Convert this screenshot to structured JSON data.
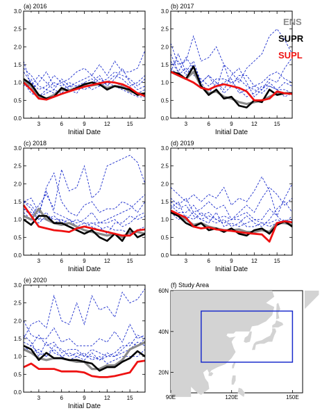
{
  "colors": {
    "ENS": "#8a8a8a",
    "SUPR": "#000000",
    "SUPL": "#ee1111",
    "member": "#1a2ccc",
    "land": "#d3d3d3",
    "box": "#1a2ccc"
  },
  "legend": [
    {
      "key": "ENS",
      "label": "ENS"
    },
    {
      "key": "SUPR",
      "label": "SUPR"
    },
    {
      "key": "SUPL",
      "label": "SUPL"
    }
  ],
  "chart_data": [
    {
      "type": "line",
      "title": "(a) 2016",
      "xlabel": "Initial Date",
      "ylabel": "",
      "x": [
        1,
        2,
        3,
        4,
        5,
        6,
        7,
        8,
        9,
        10,
        11,
        12,
        13,
        14,
        15,
        16,
        17
      ],
      "xticks": [
        3,
        6,
        9,
        12,
        15
      ],
      "yticks": [
        "0.0",
        "0.5",
        "1.0",
        "1.5",
        "2.0",
        "2.5",
        "3.0"
      ],
      "xlim": [
        1,
        17
      ],
      "ylim": [
        0,
        3
      ],
      "series": [
        {
          "name": "ENS",
          "values": [
            1.05,
            0.9,
            0.6,
            0.55,
            0.65,
            0.8,
            0.78,
            0.85,
            0.9,
            0.92,
            0.95,
            0.85,
            0.9,
            0.88,
            0.75,
            0.7,
            0.68
          ]
        },
        {
          "name": "SUPR",
          "values": [
            1.1,
            0.95,
            0.65,
            0.55,
            0.6,
            0.85,
            0.75,
            0.85,
            0.95,
            1.0,
            0.95,
            0.8,
            0.9,
            0.85,
            0.8,
            0.65,
            0.7
          ]
        },
        {
          "name": "SUPL",
          "values": [
            1.0,
            0.8,
            0.55,
            0.52,
            0.6,
            0.68,
            0.75,
            0.82,
            0.88,
            0.93,
            0.98,
            1.02,
            1.0,
            0.95,
            0.85,
            0.7,
            0.62
          ]
        }
      ],
      "members": [
        [
          1.3,
          1.0,
          0.8,
          0.9,
          1.2,
          1.0,
          1.1,
          1.3,
          1.4,
          1.2,
          1.5,
          1.2,
          1.6,
          1.3,
          1.3,
          1.4,
          1.9
        ],
        [
          1.6,
          0.9,
          1.2,
          1.0,
          0.8,
          1.1,
          0.9,
          1.0,
          1.1,
          1.2,
          1.0,
          1.1,
          1.3,
          1.2,
          1.1,
          0.9,
          1.1
        ],
        [
          0.9,
          1.1,
          0.6,
          0.7,
          0.8,
          0.7,
          0.9,
          0.8,
          0.9,
          1.0,
          1.2,
          0.9,
          1.1,
          1.4,
          1.0,
          0.8,
          0.9
        ],
        [
          1.1,
          0.8,
          1.0,
          1.3,
          0.9,
          1.0,
          0.8,
          0.7,
          1.0,
          1.1,
          0.9,
          1.0,
          0.9,
          0.8,
          0.7,
          0.6,
          0.6
        ],
        [
          1.4,
          1.2,
          0.9,
          0.8,
          1.0,
          0.9,
          1.0,
          0.9,
          0.8,
          0.9,
          1.1,
          1.0,
          1.2,
          1.1,
          0.9,
          1.0,
          1.2
        ],
        [
          1.0,
          0.7,
          0.6,
          0.8,
          0.7,
          0.8,
          0.9,
          0.9,
          1.0,
          0.8,
          0.9,
          1.0,
          1.0,
          0.9,
          0.8,
          0.7,
          0.8
        ]
      ]
    },
    {
      "type": "line",
      "title": "(b) 2017",
      "xlabel": "Initial Date",
      "ylabel": "",
      "x": [
        1,
        2,
        3,
        4,
        5,
        6,
        7,
        8,
        9,
        10,
        11,
        12,
        13,
        14,
        15,
        16,
        17
      ],
      "xticks": [
        3,
        6,
        9,
        12,
        15
      ],
      "yticks": [
        "0.0",
        "0.5",
        "1.0",
        "1.5",
        "2.0",
        "2.5",
        "3.0"
      ],
      "xlim": [
        1,
        17
      ],
      "ylim": [
        0,
        3
      ],
      "series": [
        {
          "name": "ENS",
          "values": [
            1.3,
            1.2,
            1.1,
            1.3,
            0.9,
            0.7,
            0.75,
            0.6,
            0.55,
            0.45,
            0.4,
            0.45,
            0.5,
            0.6,
            0.7,
            0.7,
            0.7
          ]
        },
        {
          "name": "SUPR",
          "values": [
            1.3,
            1.25,
            1.1,
            1.45,
            0.9,
            0.65,
            0.8,
            0.55,
            0.6,
            0.35,
            0.3,
            0.5,
            0.45,
            0.8,
            0.65,
            0.7,
            0.7
          ]
        },
        {
          "name": "SUPL",
          "values": [
            1.3,
            1.2,
            1.1,
            1.0,
            0.85,
            0.8,
            0.9,
            0.95,
            0.9,
            0.85,
            0.75,
            0.5,
            0.5,
            0.55,
            0.75,
            0.7,
            0.68
          ]
        }
      ],
      "members": [
        [
          2.1,
          1.5,
          1.6,
          2.3,
          1.6,
          1.7,
          2.0,
          1.5,
          1.3,
          1.0,
          1.4,
          1.6,
          1.8,
          2.3,
          2.5,
          2.2,
          1.8
        ],
        [
          1.8,
          1.3,
          1.7,
          1.4,
          1.0,
          1.2,
          0.8,
          1.5,
          0.9,
          1.2,
          1.2,
          0.9,
          0.8,
          1.1,
          1.0,
          1.4,
          1.7
        ],
        [
          1.5,
          1.6,
          1.2,
          1.5,
          1.0,
          1.2,
          1.0,
          0.8,
          1.2,
          1.4,
          1.0,
          0.6,
          0.8,
          1.0,
          0.8,
          1.0,
          0.9
        ],
        [
          1.4,
          1.2,
          1.4,
          1.2,
          1.1,
          0.9,
          1.1,
          1.1,
          1.0,
          1.1,
          0.9,
          0.8,
          0.7,
          0.9,
          0.8,
          0.6,
          0.7
        ],
        [
          1.6,
          1.3,
          1.1,
          1.0,
          0.9,
          0.8,
          0.9,
          1.0,
          1.1,
          0.7,
          0.8,
          0.9,
          1.0,
          1.2,
          1.3,
          1.1,
          1.0
        ],
        [
          1.3,
          1.8,
          1.3,
          1.6,
          1.0,
          0.7,
          1.0,
          0.7,
          0.9,
          0.8,
          0.6,
          0.7,
          0.9,
          0.9,
          0.8,
          0.8,
          0.7
        ]
      ]
    },
    {
      "type": "line",
      "title": "(c) 2018",
      "xlabel": "Initial Date",
      "ylabel": "",
      "x": [
        1,
        2,
        3,
        4,
        5,
        6,
        7,
        8,
        9,
        10,
        11,
        12,
        13,
        14,
        15,
        16,
        17
      ],
      "xticks": [
        3,
        6,
        9,
        12,
        15
      ],
      "yticks": [
        "0.0",
        "0.5",
        "1.0",
        "1.5",
        "2.0",
        "2.5",
        "3.0"
      ],
      "xlim": [
        1,
        17
      ],
      "ylim": [
        0,
        3
      ],
      "series": [
        {
          "name": "ENS",
          "values": [
            1.1,
            1.0,
            1.3,
            1.0,
            0.9,
            0.85,
            0.9,
            0.8,
            0.7,
            0.65,
            0.6,
            0.55,
            0.6,
            0.5,
            0.65,
            0.65,
            0.6
          ]
        },
        {
          "name": "SUPR",
          "values": [
            1.0,
            0.85,
            1.1,
            1.1,
            0.9,
            0.9,
            0.8,
            0.7,
            0.6,
            0.7,
            0.5,
            0.4,
            0.6,
            0.4,
            0.75,
            0.5,
            0.6
          ]
        },
        {
          "name": "SUPL",
          "values": [
            1.4,
            1.1,
            0.8,
            0.75,
            0.7,
            0.68,
            0.65,
            0.75,
            0.8,
            0.75,
            0.7,
            0.65,
            0.6,
            0.55,
            0.55,
            0.7,
            0.72
          ]
        }
      ],
      "members": [
        [
          1.3,
          1.1,
          1.4,
          1.7,
          1.3,
          2.4,
          1.8,
          1.9,
          2.5,
          1.6,
          1.8,
          2.5,
          2.6,
          2.7,
          2.8,
          2.6,
          2.0
        ],
        [
          1.5,
          1.4,
          1.1,
          1.9,
          2.3,
          1.5,
          1.2,
          1.1,
          1.4,
          1.5,
          1.2,
          1.3,
          1.3,
          1.5,
          1.4,
          1.2,
          1.5
        ],
        [
          1.5,
          1.6,
          1.2,
          1.8,
          1.2,
          1.1,
          1.0,
          0.9,
          1.0,
          1.2,
          0.9,
          0.9,
          1.0,
          0.8,
          0.9,
          1.1,
          1.2
        ],
        [
          1.3,
          1.2,
          1.0,
          1.0,
          1.1,
          0.9,
          1.0,
          0.8,
          0.9,
          0.8,
          0.7,
          0.8,
          0.7,
          0.7,
          0.6,
          0.7,
          0.8
        ],
        [
          1.2,
          1.0,
          0.9,
          1.1,
          1.0,
          1.0,
          0.9,
          1.0,
          0.9,
          0.9,
          0.9,
          1.0,
          1.1,
          1.2,
          1.3,
          1.5,
          1.7
        ],
        [
          1.5,
          1.3,
          1.0,
          1.2,
          0.9,
          1.0,
          0.8,
          0.7,
          0.8,
          0.9,
          0.8,
          0.6,
          0.9,
          0.9,
          1.1,
          1.0,
          1.1
        ]
      ]
    },
    {
      "type": "line",
      "title": "(d) 2019",
      "xlabel": "Initial Date",
      "ylabel": "",
      "x": [
        1,
        2,
        3,
        4,
        5,
        6,
        7,
        8,
        9,
        10,
        11,
        12,
        13,
        14,
        15,
        16,
        17
      ],
      "xticks": [
        3,
        6,
        9,
        12,
        15
      ],
      "yticks": [
        "0.0",
        "0.5",
        "1.0",
        "1.5",
        "2.0",
        "2.5",
        "3.0"
      ],
      "xlim": [
        1,
        17
      ],
      "ylim": [
        0,
        3
      ],
      "series": [
        {
          "name": "ENS",
          "values": [
            1.2,
            1.1,
            1.0,
            0.85,
            0.9,
            0.8,
            0.75,
            0.7,
            0.7,
            0.72,
            0.65,
            0.65,
            0.7,
            0.65,
            0.9,
            0.9,
            0.85
          ]
        },
        {
          "name": "SUPR",
          "values": [
            1.2,
            1.1,
            0.9,
            0.8,
            0.9,
            0.7,
            0.75,
            0.65,
            0.75,
            0.6,
            0.55,
            0.7,
            0.75,
            0.6,
            0.85,
            0.95,
            0.8
          ]
        },
        {
          "name": "SUPL",
          "values": [
            1.25,
            1.15,
            1.05,
            0.8,
            0.75,
            0.78,
            0.72,
            0.7,
            0.68,
            0.65,
            0.62,
            0.6,
            0.58,
            0.38,
            0.9,
            0.95,
            0.92
          ]
        }
      ],
      "members": [
        [
          1.9,
          1.7,
          1.5,
          1.7,
          1.5,
          1.7,
          1.6,
          1.9,
          1.4,
          1.6,
          1.5,
          1.8,
          2.2,
          1.8,
          1.1,
          1.6,
          2.0
        ],
        [
          1.6,
          1.4,
          1.6,
          1.2,
          1.3,
          1.5,
          1.3,
          1.4,
          1.0,
          1.2,
          1.4,
          1.2,
          1.6,
          1.9,
          1.7,
          1.4,
          1.6
        ],
        [
          1.4,
          1.2,
          1.2,
          1.4,
          1.1,
          1.2,
          1.0,
          1.1,
          1.0,
          1.1,
          1.2,
          1.0,
          1.0,
          1.3,
          1.1,
          0.9,
          1.0
        ],
        [
          1.3,
          1.5,
          1.0,
          1.2,
          1.0,
          0.9,
          1.2,
          0.8,
          0.9,
          0.8,
          0.9,
          1.0,
          0.9,
          0.8,
          0.9,
          1.0,
          0.9
        ],
        [
          1.2,
          1.0,
          1.1,
          1.0,
          1.2,
          1.0,
          0.9,
          1.0,
          0.8,
          0.9,
          1.1,
          0.9,
          0.8,
          1.0,
          1.3,
          1.5,
          1.2
        ],
        [
          1.5,
          1.3,
          1.4,
          1.1,
          1.0,
          1.1,
          1.0,
          0.9,
          1.0,
          1.0,
          0.8,
          0.8,
          0.9,
          0.9,
          1.0,
          0.9,
          1.1
        ]
      ]
    },
    {
      "type": "line",
      "title": "(e) 2020",
      "xlabel": "Initial Date",
      "ylabel": "",
      "x": [
        1,
        2,
        3,
        4,
        5,
        6,
        7,
        8,
        9,
        10,
        11,
        12,
        13,
        14,
        15,
        16,
        17
      ],
      "xticks": [
        3,
        6,
        9,
        12,
        15
      ],
      "yticks": [
        "0.0",
        "0.5",
        "1.0",
        "1.5",
        "2.0",
        "2.5",
        "3.0"
      ],
      "xlim": [
        1,
        17
      ],
      "ylim": [
        0,
        3
      ],
      "series": [
        {
          "name": "ENS",
          "values": [
            1.2,
            1.1,
            0.95,
            0.9,
            0.95,
            0.95,
            0.9,
            0.85,
            0.85,
            0.65,
            0.65,
            0.75,
            0.75,
            0.9,
            1.2,
            1.3,
            1.4
          ]
        },
        {
          "name": "SUPR",
          "values": [
            1.3,
            1.2,
            0.9,
            1.1,
            0.95,
            0.95,
            0.9,
            0.9,
            0.85,
            0.8,
            0.6,
            0.7,
            0.7,
            0.85,
            0.95,
            1.15,
            1.0
          ]
        },
        {
          "name": "SUPL",
          "values": [
            0.7,
            0.8,
            0.65,
            0.65,
            0.65,
            0.58,
            0.58,
            0.58,
            0.55,
            0.45,
            0.42,
            0.42,
            0.45,
            0.5,
            0.55,
            0.85,
            0.88
          ]
        }
      ],
      "members": [
        [
          1.5,
          1.9,
          2.0,
          1.8,
          2.7,
          2.0,
          1.9,
          2.5,
          1.9,
          2.7,
          2.3,
          2.4,
          2.1,
          2.8,
          2.5,
          2.6,
          2.9
        ],
        [
          2.0,
          1.6,
          1.5,
          1.5,
          1.8,
          1.4,
          1.5,
          1.3,
          1.3,
          1.3,
          1.5,
          1.4,
          1.7,
          1.4,
          1.9,
          1.5,
          1.6
        ],
        [
          1.4,
          1.3,
          1.6,
          1.3,
          1.4,
          1.1,
          1.2,
          1.2,
          1.0,
          1.2,
          1.1,
          1.0,
          1.1,
          1.3,
          1.3,
          1.6,
          1.5
        ],
        [
          1.3,
          1.1,
          1.2,
          1.0,
          1.3,
          1.2,
          1.0,
          1.1,
          1.0,
          1.0,
          0.9,
          1.1,
          1.0,
          1.1,
          1.2,
          1.4,
          1.3
        ],
        [
          1.6,
          1.4,
          1.0,
          1.4,
          1.1,
          1.0,
          1.1,
          1.0,
          1.1,
          0.9,
          1.0,
          0.8,
          0.9,
          1.0,
          1.0,
          1.0,
          1.2
        ],
        [
          1.2,
          1.3,
          1.1,
          1.0,
          1.2,
          1.0,
          0.9,
          1.0,
          0.9,
          1.1,
          0.9,
          1.0,
          1.0,
          1.2,
          1.4,
          1.3,
          1.5
        ]
      ]
    }
  ],
  "map": {
    "title": "(f) Study Area",
    "lon_ticks": [
      "90E",
      "120E",
      "150E"
    ],
    "lat_ticks": [
      "20N",
      "40N",
      "60N"
    ],
    "lon_range": [
      90,
      155
    ],
    "lat_range": [
      10,
      60
    ],
    "box": {
      "lon": [
        105,
        150
      ],
      "lat": [
        25,
        50
      ]
    }
  }
}
